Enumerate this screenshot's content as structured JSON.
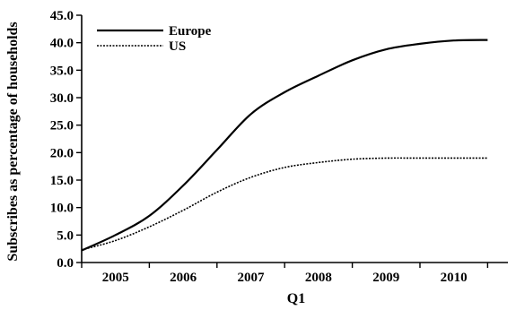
{
  "chart_data": {
    "type": "line",
    "title": "",
    "xlabel": "Q1",
    "ylabel": "Subscribes as percentage of households",
    "x": [
      2004.5,
      2005.0,
      2005.5,
      2006.0,
      2006.5,
      2007.0,
      2007.5,
      2008.0,
      2008.5,
      2009.0,
      2009.5,
      2010.0,
      2010.5
    ],
    "x_tick_labels": [
      "2005",
      "2006",
      "2007",
      "2008",
      "2009",
      "2010"
    ],
    "xlim": [
      2004.5,
      2010.8
    ],
    "ylim": [
      0,
      45
    ],
    "y_ticks": [
      "0.0",
      "5.0",
      "10.0",
      "15.0",
      "20.0",
      "25.0",
      "30.0",
      "35.0",
      "40.0",
      "45.0"
    ],
    "series": [
      {
        "name": "Europe",
        "style": "solid",
        "color": "#000000",
        "values": [
          2.2,
          5.0,
          8.5,
          14.0,
          20.5,
          27.0,
          31.0,
          34.0,
          36.8,
          38.8,
          39.8,
          40.4,
          40.5
        ]
      },
      {
        "name": "US",
        "style": "dotted",
        "color": "#000000",
        "values": [
          2.3,
          4.0,
          6.5,
          9.5,
          12.8,
          15.5,
          17.3,
          18.2,
          18.8,
          19.0,
          19.0,
          19.0,
          19.0
        ]
      }
    ],
    "legend_position": "top-left",
    "grid": false
  }
}
